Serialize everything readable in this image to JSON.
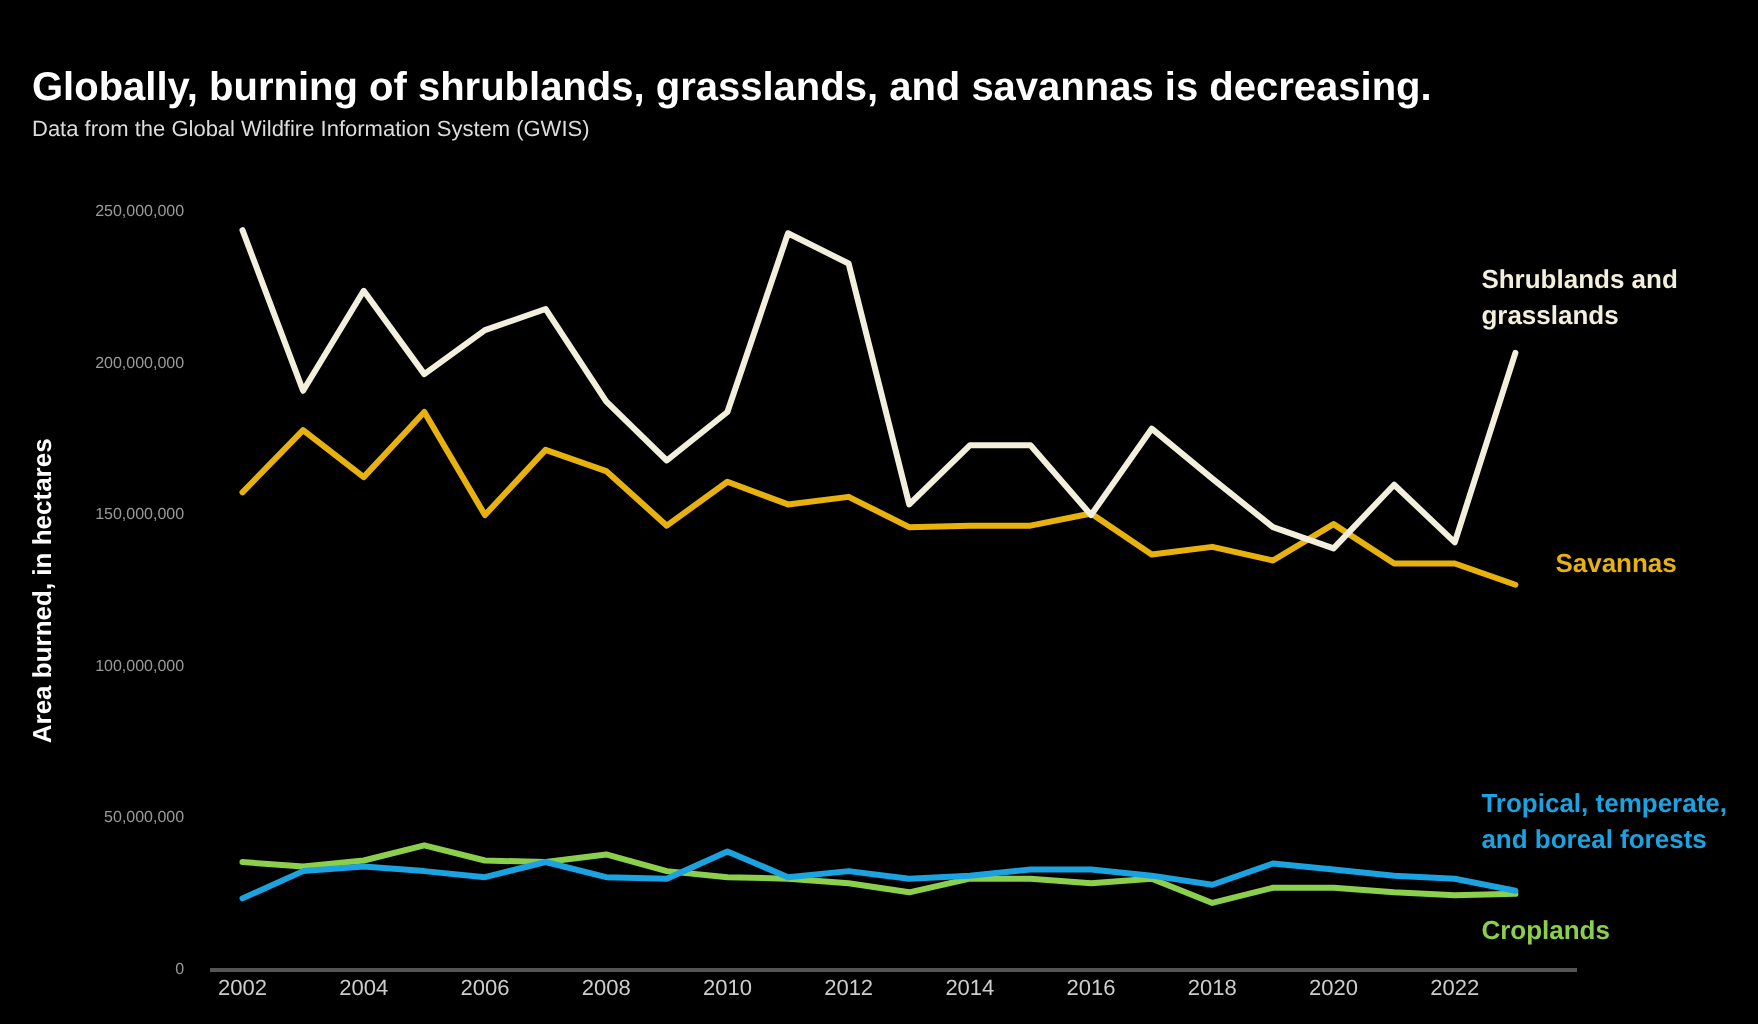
{
  "chart_data": {
    "type": "line",
    "title": "Globally, burning of shrublands, grasslands, and savannas is decreasing.",
    "subtitle": "Data from the Global Wildfire Information System (GWIS)",
    "ylabel": "Area burned, in hectares",
    "x": [
      2002,
      2003,
      2004,
      2005,
      2006,
      2007,
      2008,
      2009,
      2010,
      2011,
      2012,
      2013,
      2014,
      2015,
      2016,
      2017,
      2018,
      2019,
      2020,
      2021,
      2022,
      2023
    ],
    "xlim": [
      2001.5,
      2024
    ],
    "xticks": [
      2002,
      2004,
      2006,
      2008,
      2010,
      2012,
      2014,
      2016,
      2018,
      2020,
      2022
    ],
    "ylim": [
      0,
      250000000
    ],
    "yticks": [
      {
        "value": 0,
        "label": "0"
      },
      {
        "value": 50000000,
        "label": "50,000,000"
      },
      {
        "value": 100000000,
        "label": "100,000,000"
      },
      {
        "value": 150000000,
        "label": "150,000,000"
      },
      {
        "value": 200000000,
        "label": "200,000,000"
      },
      {
        "value": 250000000,
        "label": "250,000,000"
      }
    ],
    "grid": false,
    "marker": "none",
    "line_style": "solid",
    "series": [
      {
        "name": "Shrublands and grasslands",
        "color": "#f2efdc",
        "values": [
          244000000,
          191000000,
          224000000,
          196500000,
          211000000,
          218000000,
          187500000,
          168000000,
          184000000,
          243000000,
          233000000,
          153500000,
          173000000,
          173000000,
          150000000,
          178500000,
          162000000,
          146000000,
          139000000,
          160000000,
          141000000,
          203500000
        ]
      },
      {
        "name": "Savannas",
        "color": "#e8b20e",
        "values": [
          157500000,
          178000000,
          162500000,
          184000000,
          150000000,
          171500000,
          164500000,
          146500000,
          161000000,
          153500000,
          156000000,
          146000000,
          146500000,
          146500000,
          150500000,
          137000000,
          139500000,
          135000000,
          147000000,
          134000000,
          134000000,
          127000000
        ]
      },
      {
        "name": "Tropical, temperate, and boreal forests",
        "color": "#1aa3e0",
        "values": [
          23500000,
          32500000,
          34000000,
          32500000,
          30500000,
          35500000,
          30500000,
          30000000,
          39000000,
          30500000,
          32500000,
          30000000,
          31000000,
          33000000,
          33000000,
          31000000,
          28000000,
          35000000,
          33000000,
          31000000,
          30000000,
          26000000
        ]
      },
      {
        "name": "Croplands",
        "color": "#8ccf4c",
        "values": [
          35500000,
          34000000,
          36000000,
          41000000,
          36000000,
          35500000,
          38000000,
          32500000,
          30500000,
          30000000,
          28500000,
          25500000,
          30000000,
          30000000,
          28500000,
          30000000,
          22000000,
          27000000,
          27000000,
          25500000,
          24500000,
          25000000
        ]
      }
    ]
  }
}
